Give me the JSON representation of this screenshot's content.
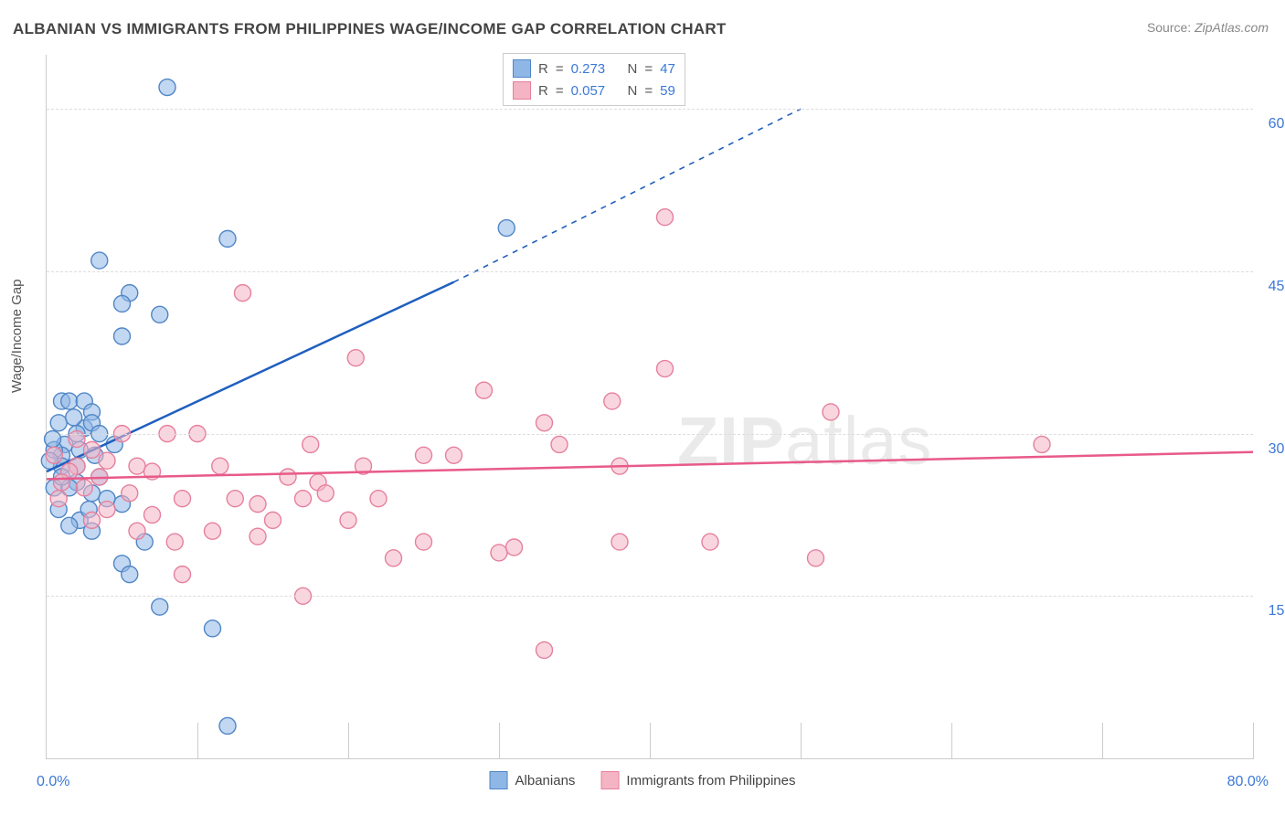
{
  "title": "ALBANIAN VS IMMIGRANTS FROM PHILIPPINES WAGE/INCOME GAP CORRELATION CHART",
  "source_label": "Source:",
  "source": "ZipAtlas.com",
  "ylabel": "Wage/Income Gap",
  "watermark_a": "ZIP",
  "watermark_b": "atlas",
  "chart": {
    "type": "scatter",
    "background_color": "#ffffff",
    "grid_color": "#dddddd",
    "axis_color": "#cccccc",
    "tick_label_color": "#3b78d8",
    "xlim": [
      0,
      80
    ],
    "ylim": [
      0,
      65
    ],
    "xticks_label_min": "0.0%",
    "xticks_label_max": "80.0%",
    "yticks": [
      15,
      30,
      45,
      60
    ],
    "ytick_labels": [
      "15.0%",
      "30.0%",
      "45.0%",
      "60.0%"
    ],
    "xticks_minor_step": 10,
    "marker_radius": 9,
    "marker_opacity": 0.55,
    "trend_line_width": 2.5,
    "series": [
      {
        "key": "albanians",
        "label": "Albanians",
        "color": "#8fb7e6",
        "stroke": "#4f86c6",
        "trend_color": "#1f5fbf",
        "points": [
          [
            8,
            62
          ],
          [
            12,
            48
          ],
          [
            3.5,
            46
          ],
          [
            30.5,
            49
          ],
          [
            5.5,
            43
          ],
          [
            5,
            42
          ],
          [
            7.5,
            41
          ],
          [
            5,
            39
          ],
          [
            1,
            33
          ],
          [
            1.5,
            33
          ],
          [
            2.5,
            33
          ],
          [
            3,
            32
          ],
          [
            0.8,
            31
          ],
          [
            2.5,
            30.5
          ],
          [
            3,
            31
          ],
          [
            2,
            30
          ],
          [
            1.2,
            29
          ],
          [
            3.5,
            30
          ],
          [
            2.2,
            28.5
          ],
          [
            1,
            28
          ],
          [
            0.5,
            28.5
          ],
          [
            1,
            27
          ],
          [
            0.2,
            27.5
          ],
          [
            2,
            27
          ],
          [
            3.5,
            26
          ],
          [
            2,
            25.5
          ],
          [
            0.5,
            25
          ],
          [
            1.5,
            25
          ],
          [
            3,
            24.5
          ],
          [
            4,
            24
          ],
          [
            5,
            23.5
          ],
          [
            0.8,
            23
          ],
          [
            2.2,
            22
          ],
          [
            6.5,
            20
          ],
          [
            3,
            21
          ],
          [
            1.5,
            21.5
          ],
          [
            5,
            18
          ],
          [
            5.5,
            17
          ],
          [
            7.5,
            14
          ],
          [
            11,
            12
          ],
          [
            12,
            3
          ],
          [
            4.5,
            29
          ],
          [
            1.8,
            31.5
          ],
          [
            0.4,
            29.5
          ],
          [
            3.2,
            28
          ],
          [
            1,
            26
          ],
          [
            2.8,
            23
          ]
        ],
        "trend": {
          "x1": 0,
          "y1": 26.5,
          "x2_solid": 27,
          "y2_solid": 44,
          "x2_dash": 50,
          "y2_dash": 60
        }
      },
      {
        "key": "philippines",
        "label": "Immigrants from Philippines",
        "color": "#f4b4c4",
        "stroke": "#e6809d",
        "trend_color": "#e85a8a",
        "points": [
          [
            41,
            50
          ],
          [
            13,
            43
          ],
          [
            20.5,
            37
          ],
          [
            41,
            36
          ],
          [
            29,
            34
          ],
          [
            37.5,
            33
          ],
          [
            52,
            32
          ],
          [
            33,
            31
          ],
          [
            34,
            29
          ],
          [
            17.5,
            29
          ],
          [
            5,
            30
          ],
          [
            10,
            30
          ],
          [
            8,
            30
          ],
          [
            66,
            29
          ],
          [
            25,
            28
          ],
          [
            27,
            28
          ],
          [
            3,
            28.5
          ],
          [
            4,
            27.5
          ],
          [
            6,
            27
          ],
          [
            11.5,
            27
          ],
          [
            21,
            27
          ],
          [
            38,
            27
          ],
          [
            2,
            27
          ],
          [
            0.5,
            28
          ],
          [
            1.5,
            26.5
          ],
          [
            7,
            26.5
          ],
          [
            3.5,
            26
          ],
          [
            16,
            26
          ],
          [
            18,
            25.5
          ],
          [
            18.5,
            24.5
          ],
          [
            12.5,
            24
          ],
          [
            17,
            24
          ],
          [
            22,
            24
          ],
          [
            2.5,
            25
          ],
          [
            5.5,
            24.5
          ],
          [
            9,
            24
          ],
          [
            14,
            23.5
          ],
          [
            4,
            23
          ],
          [
            0.8,
            24
          ],
          [
            7,
            22.5
          ],
          [
            15,
            22
          ],
          [
            20,
            22
          ],
          [
            25,
            20
          ],
          [
            14,
            20.5
          ],
          [
            8.5,
            20
          ],
          [
            30,
            19
          ],
          [
            31,
            19.5
          ],
          [
            38,
            20
          ],
          [
            44,
            20
          ],
          [
            23,
            18.5
          ],
          [
            51,
            18.5
          ],
          [
            6,
            21
          ],
          [
            11,
            21
          ],
          [
            3,
            22
          ],
          [
            9,
            17
          ],
          [
            17,
            15
          ],
          [
            33,
            10
          ],
          [
            1,
            25.5
          ],
          [
            2,
            29.5
          ]
        ],
        "trend": {
          "x1": 0,
          "y1": 25.8,
          "x2_solid": 80,
          "y2_solid": 28.3
        }
      }
    ]
  },
  "stats_legend": [
    {
      "series_key": "albanians",
      "r_label": "R",
      "r": "0.273",
      "n_label": "N",
      "n": "47"
    },
    {
      "series_key": "philippines",
      "r_label": "R",
      "r": "0.057",
      "n_label": "N",
      "n": "59"
    }
  ]
}
